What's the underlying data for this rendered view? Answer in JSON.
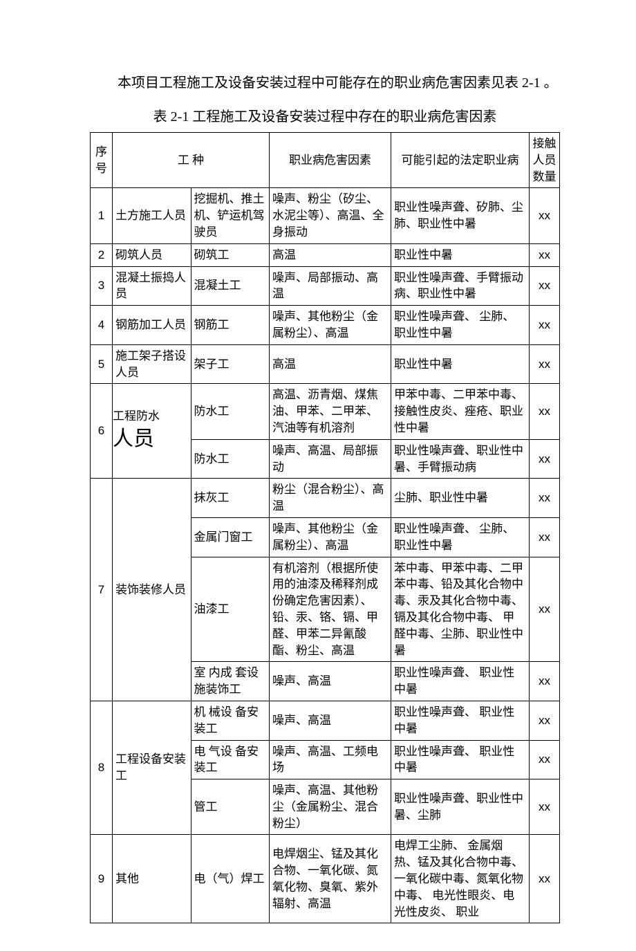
{
  "intro": "本项目工程施工及设备安装过程中可能存在的职业病危害因素见表 2-1 。",
  "caption": "表 2-1  工程施工及设备安装过程中存在的职业病危害因素",
  "headers": {
    "seq": "序号",
    "job": "工    种",
    "hazard": "职业病危害因素",
    "disease": "可能引起的法定职业病",
    "count": "接触人员数量"
  },
  "xx": "xx",
  "rows": {
    "r1": {
      "seq": "1",
      "job1": "土方施工人员",
      "job2": "挖掘机、推土机、铲运机驾驶员",
      "haz": "噪声、粉尘（矽尘、水泥尘等）、高温、全身振动",
      "dis": "职业性噪声聋、矽肺、尘肺、职业性中暑"
    },
    "r2": {
      "seq": "2",
      "job1": "砌筑人员",
      "job2": "砌筑工",
      "haz": "高温",
      "dis": "职业性中暑"
    },
    "r3": {
      "seq": "3",
      "job1": "混凝土振捣人员",
      "job2": "混凝土工",
      "haz": "噪声、局部振动、高温",
      "dis": "职业性噪声聋、手臂振动病、职业性中暑"
    },
    "r4": {
      "seq": "4",
      "job1": "钢筋加工人员",
      "job2": "钢筋工",
      "haz": "噪声、其他粉尘（金属粉尘）、高温",
      "dis": "职业性噪声聋、 尘肺、职业性中暑"
    },
    "r5": {
      "seq": "5",
      "job1": "施工架子搭设人员",
      "job2": "架子工",
      "haz": "高温",
      "dis": "职业性中暑"
    },
    "r6a": {
      "seq": "6",
      "job1a": "工程防水",
      "job1b": "人员",
      "job2": "防水工",
      "haz": "高温、沥青烟、煤焦油、甲苯、二甲苯、汽油等有机溶剂",
      "dis": "甲苯中毒、二甲苯中毒、 接触性皮炎、痤疮、职业性中暑"
    },
    "r6b": {
      "job2": "防水工",
      "haz": "噪声、高温、局部振动",
      "dis": "职业性噪声聋、职业性中暑、手臂振动病"
    },
    "r7a": {
      "seq": "7",
      "job1": "装饰装修人员",
      "job2": "抹灰工",
      "haz": "粉尘（混合粉尘）、高温",
      "dis": "尘肺、职业性中暑"
    },
    "r7b": {
      "job2": "金属门窗工",
      "haz": "噪声、其他粉尘（金属粉尘）、高温",
      "dis": "职业性噪声聋、 尘肺、职业性中暑"
    },
    "r7c": {
      "job2": "油漆工",
      "haz": "有机溶剂（根据所使用的油漆及稀释剂成份确定危害因素）、铅、汞、铬、镉、甲醛、甲苯二异氰酸酯、粉尘、高温",
      "dis": "苯中毒、甲苯中毒、二甲苯中毒、铅及其化合物中毒、汞及其化合物中毒、 镉及其化合物中毒、 甲醛中毒、尘肺、职业性中暑"
    },
    "r7d": {
      "job2": "室 内成 套设施装饰工",
      "haz": "噪声、高温",
      "dis": "职业性噪声聋、 职业性中暑"
    },
    "r8a": {
      "seq": "8",
      "job1": "工程设备安装工",
      "job2": "机 械设 备安装工",
      "haz": "噪声、高温",
      "dis": "职业性噪声聋、 职业性中暑"
    },
    "r8b": {
      "job2": "电 气设 备安装工",
      "haz": "噪声、高温、工频电场",
      "dis": "职业性噪声聋、 职业性中暑"
    },
    "r8c": {
      "job2": "管工",
      "haz": "噪声、高温、其他粉尘（金属粉尘、混合粉尘）",
      "dis": "职业性噪声聋、职业性中暑、尘肺"
    },
    "r9": {
      "seq": "9",
      "job1": "其他",
      "job2": "电（气）焊工",
      "haz": "电焊烟尘、锰及其化合物、一氧化碳、氮氧化物、臭氧、紫外辐射、高温",
      "dis": "电焊工尘肺、 金属烟热、锰及其化合物中毒、 一氧化碳中毒、氮氧化物中毒、 电光性眼炎、电光性皮炎、 职业"
    }
  }
}
